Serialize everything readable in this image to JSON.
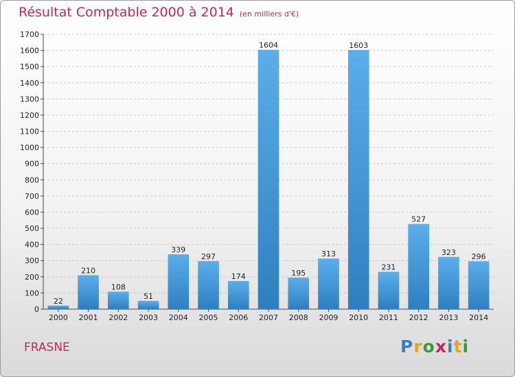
{
  "title": "Résultat Comptable 2000 à 2014",
  "unit": "(en milliers d'€)",
  "town": "FRASNE",
  "logo": {
    "text": "Proxiti",
    "letters": [
      {
        "char": "P",
        "color": "#3a7fc4"
      },
      {
        "char": "r",
        "color": "#e8a21a"
      },
      {
        "char": "o",
        "color": "#3a9a3a"
      },
      {
        "char": "x",
        "color": "#c0285a"
      },
      {
        "char": "i",
        "color": "#3a7fc4"
      },
      {
        "char": "t",
        "color": "#e8a21a"
      },
      {
        "char": "i",
        "color": "#3a9a3a"
      }
    ]
  },
  "colors": {
    "accent": "#c0285a",
    "bar_top": "#5aaeea",
    "bar_bottom": "#2f7fc0",
    "grid": "#c8c8c8"
  },
  "chart_data": {
    "type": "bar",
    "title": "Résultat Comptable 2000 à 2014",
    "subtitle": "(en milliers d'€)",
    "xlabel": "",
    "ylabel": "",
    "categories": [
      "2000",
      "2001",
      "2002",
      "2003",
      "2004",
      "2005",
      "2006",
      "2007",
      "2008",
      "2009",
      "2010",
      "2011",
      "2012",
      "2013",
      "2014"
    ],
    "values": [
      22,
      210,
      108,
      51,
      339,
      297,
      174,
      1604,
      195,
      313,
      1603,
      231,
      527,
      323,
      296
    ],
    "ylim": [
      0,
      1700
    ],
    "yticks": [
      0,
      100,
      200,
      300,
      400,
      500,
      600,
      700,
      800,
      900,
      1000,
      1100,
      1200,
      1300,
      1400,
      1500,
      1600,
      1700
    ],
    "grid": true,
    "legend": "none"
  }
}
